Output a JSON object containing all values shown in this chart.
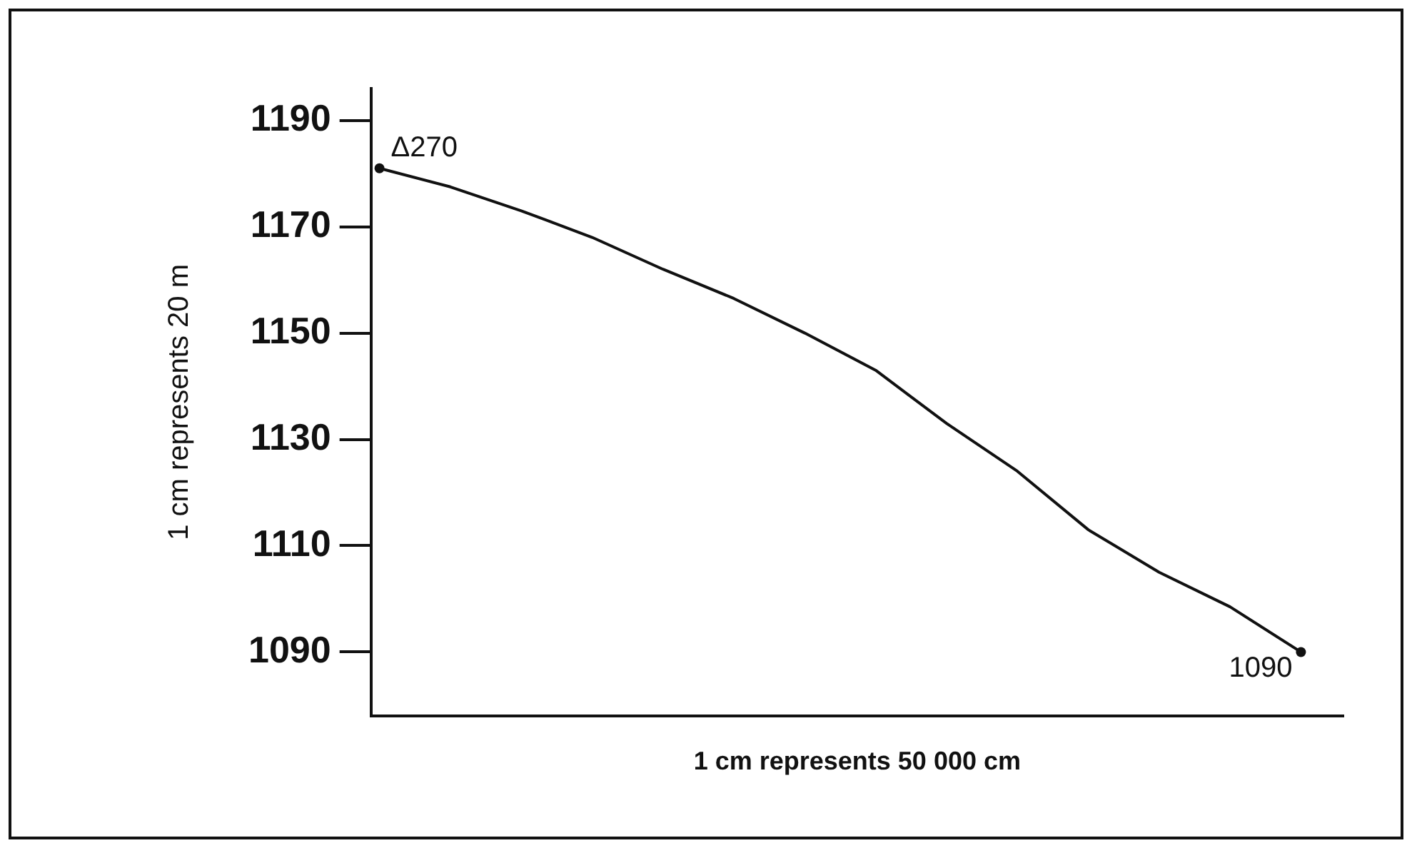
{
  "chart_data": {
    "type": "line",
    "xlabel": "1 cm represents 50 000 cm",
    "ylabel": "1 cm represents 20 m",
    "categories": [
      null,
      null,
      null,
      null,
      null,
      null,
      null,
      null,
      null,
      null,
      null,
      null,
      null,
      null
    ],
    "series": [
      {
        "color": "#111111",
        "values": [
          1181,
          1177.5,
          1173,
          1168,
          1162,
          1156.5,
          1150,
          1143,
          1133,
          1124,
          1113,
          1105,
          1098.5,
          1090
        ]
      }
    ],
    "ylim": [
      1078,
      1196
    ],
    "yticks": [
      1090,
      1110,
      1130,
      1150,
      1170,
      1190
    ],
    "tick_labels": "y",
    "grid": false,
    "legend": false,
    "marker": "none",
    "line_style": "solid",
    "annotations": [
      "Δ270",
      "1090"
    ]
  }
}
